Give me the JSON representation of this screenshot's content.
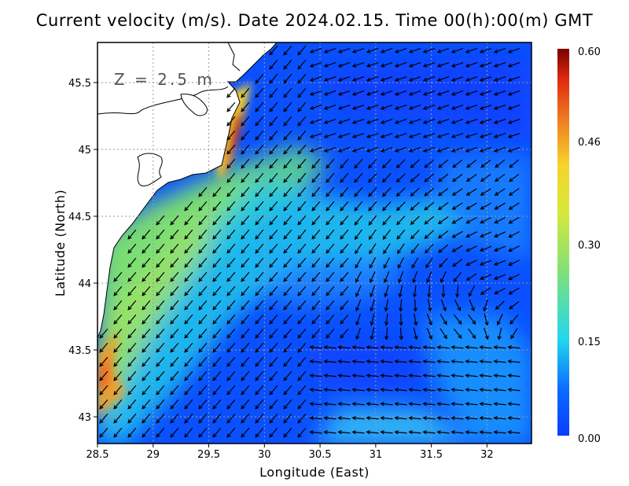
{
  "title": "Current velocity (m/s). Date 2024.02.15. Time 00(h):00(m) GMT",
  "depth_label": "Z = 2.5 m",
  "chart_data": {
    "type": "heatmap",
    "title": "Current velocity (m/s). Date 2024.02.15. Time 00(h):00(m) GMT",
    "xlabel": "Longitude (East)",
    "ylabel": "Latitude (North)",
    "xlim": [
      28.5,
      32.4
    ],
    "ylim": [
      42.8,
      45.8
    ],
    "x_ticks": [
      "28.5",
      "29",
      "29.5",
      "30",
      "30.5",
      "31",
      "31.5",
      "32"
    ],
    "x_tick_values": [
      28.5,
      29,
      29.5,
      30,
      30.5,
      31,
      31.5,
      32
    ],
    "y_ticks": [
      "43",
      "43.5",
      "44",
      "44.5",
      "45",
      "45.5"
    ],
    "y_tick_values": [
      43,
      43.5,
      44,
      44.5,
      45,
      45.5
    ],
    "grid": true,
    "colorbar": {
      "ticks": [
        "0.00",
        "0.15",
        "0.30",
        "0.46",
        "0.60"
      ],
      "tick_values": [
        0.0,
        0.15,
        0.3,
        0.46,
        0.6
      ],
      "range": [
        0.0,
        0.6
      ]
    },
    "features": [
      "coastline",
      "velocity vectors"
    ]
  },
  "colors": {
    "low": "#0a3cff",
    "mid": "#22d8ee",
    "green": "#8ee05a",
    "yellow": "#f2e838",
    "orange": "#f08a20",
    "high": "#7a0000",
    "land": "#ffffff",
    "grid": "#9a9a9a"
  }
}
